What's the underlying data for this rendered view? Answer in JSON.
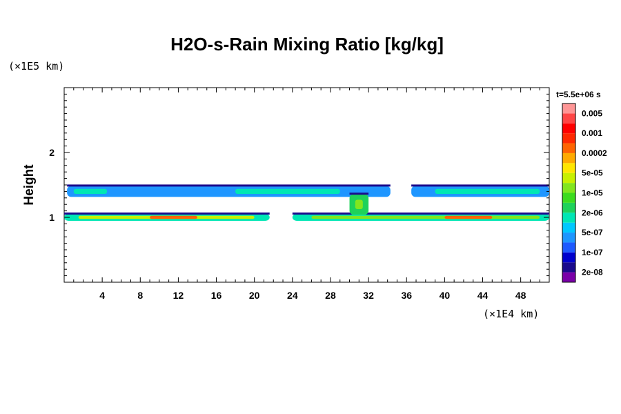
{
  "chart_data": {
    "type": "heatmap",
    "title": "H2O-s-Rain Mixing Ratio [kg/kg]",
    "xlabel": "",
    "ylabel": "Height",
    "x_unit": "(×1E4 km)",
    "y_unit": "(×1E5 km)",
    "time_label": "t=5.5e+06 s",
    "xlim": [
      0,
      51
    ],
    "ylim": [
      0,
      3
    ],
    "x_ticks": [
      4,
      8,
      12,
      16,
      20,
      24,
      28,
      32,
      36,
      40,
      44,
      48
    ],
    "y_ticks": [
      1,
      2
    ],
    "x_tick_labels": [
      "4",
      "8",
      "12",
      "16",
      "20",
      "24",
      "28",
      "32",
      "36",
      "40",
      "44",
      "48"
    ],
    "y_tick_labels": [
      "1",
      "2"
    ],
    "colorbar": {
      "colors": [
        "#7a00a8",
        "#1a0a8c",
        "#0000cc",
        "#1e5aff",
        "#1e96ff",
        "#00c8ff",
        "#00e6b4",
        "#1ed25a",
        "#3cdc1e",
        "#82e61e",
        "#c8f000",
        "#ffe600",
        "#ffaa00",
        "#ff6400",
        "#ff2800",
        "#ff0000",
        "#ff4646",
        "#ff9696"
      ],
      "labels": [
        "2e-08",
        "1e-07",
        "5e-07",
        "2e-06",
        "1e-05",
        "5e-05",
        "0.0002",
        "0.001",
        "0.005"
      ]
    },
    "layers": [
      {
        "name": "upper",
        "height": 1.4,
        "segments": [
          {
            "x0": 0.3,
            "x1": 34.3,
            "level": 4
          },
          {
            "x0": 36.5,
            "x1": 51,
            "level": 4
          }
        ],
        "cores": [
          {
            "x0": 1.0,
            "x1": 4.5,
            "level": 6
          },
          {
            "x0": 18.0,
            "x1": 29.0,
            "level": 6
          },
          {
            "x0": 39.0,
            "x1": 50.0,
            "level": 6
          }
        ]
      },
      {
        "name": "lower",
        "height": 1.0,
        "segments": [
          {
            "x0": 0,
            "x1": 21.6,
            "level": 6
          },
          {
            "x0": 24.0,
            "x1": 51,
            "level": 6
          }
        ],
        "cores": [
          {
            "x0": 1.5,
            "x1": 20.0,
            "level": 10
          },
          {
            "x0": 26.0,
            "x1": 50.0,
            "level": 9
          },
          {
            "x0": 9.0,
            "x1": 14.0,
            "level": 13
          },
          {
            "x0": 40.0,
            "x1": 45.0,
            "level": 13
          }
        ]
      },
      {
        "name": "column",
        "height": 1.2,
        "segments": [
          {
            "x0": 30.0,
            "x1": 32.0,
            "level": 7
          }
        ],
        "cores": [
          {
            "x0": 30.6,
            "x1": 31.4,
            "level": 9
          }
        ]
      }
    ]
  }
}
